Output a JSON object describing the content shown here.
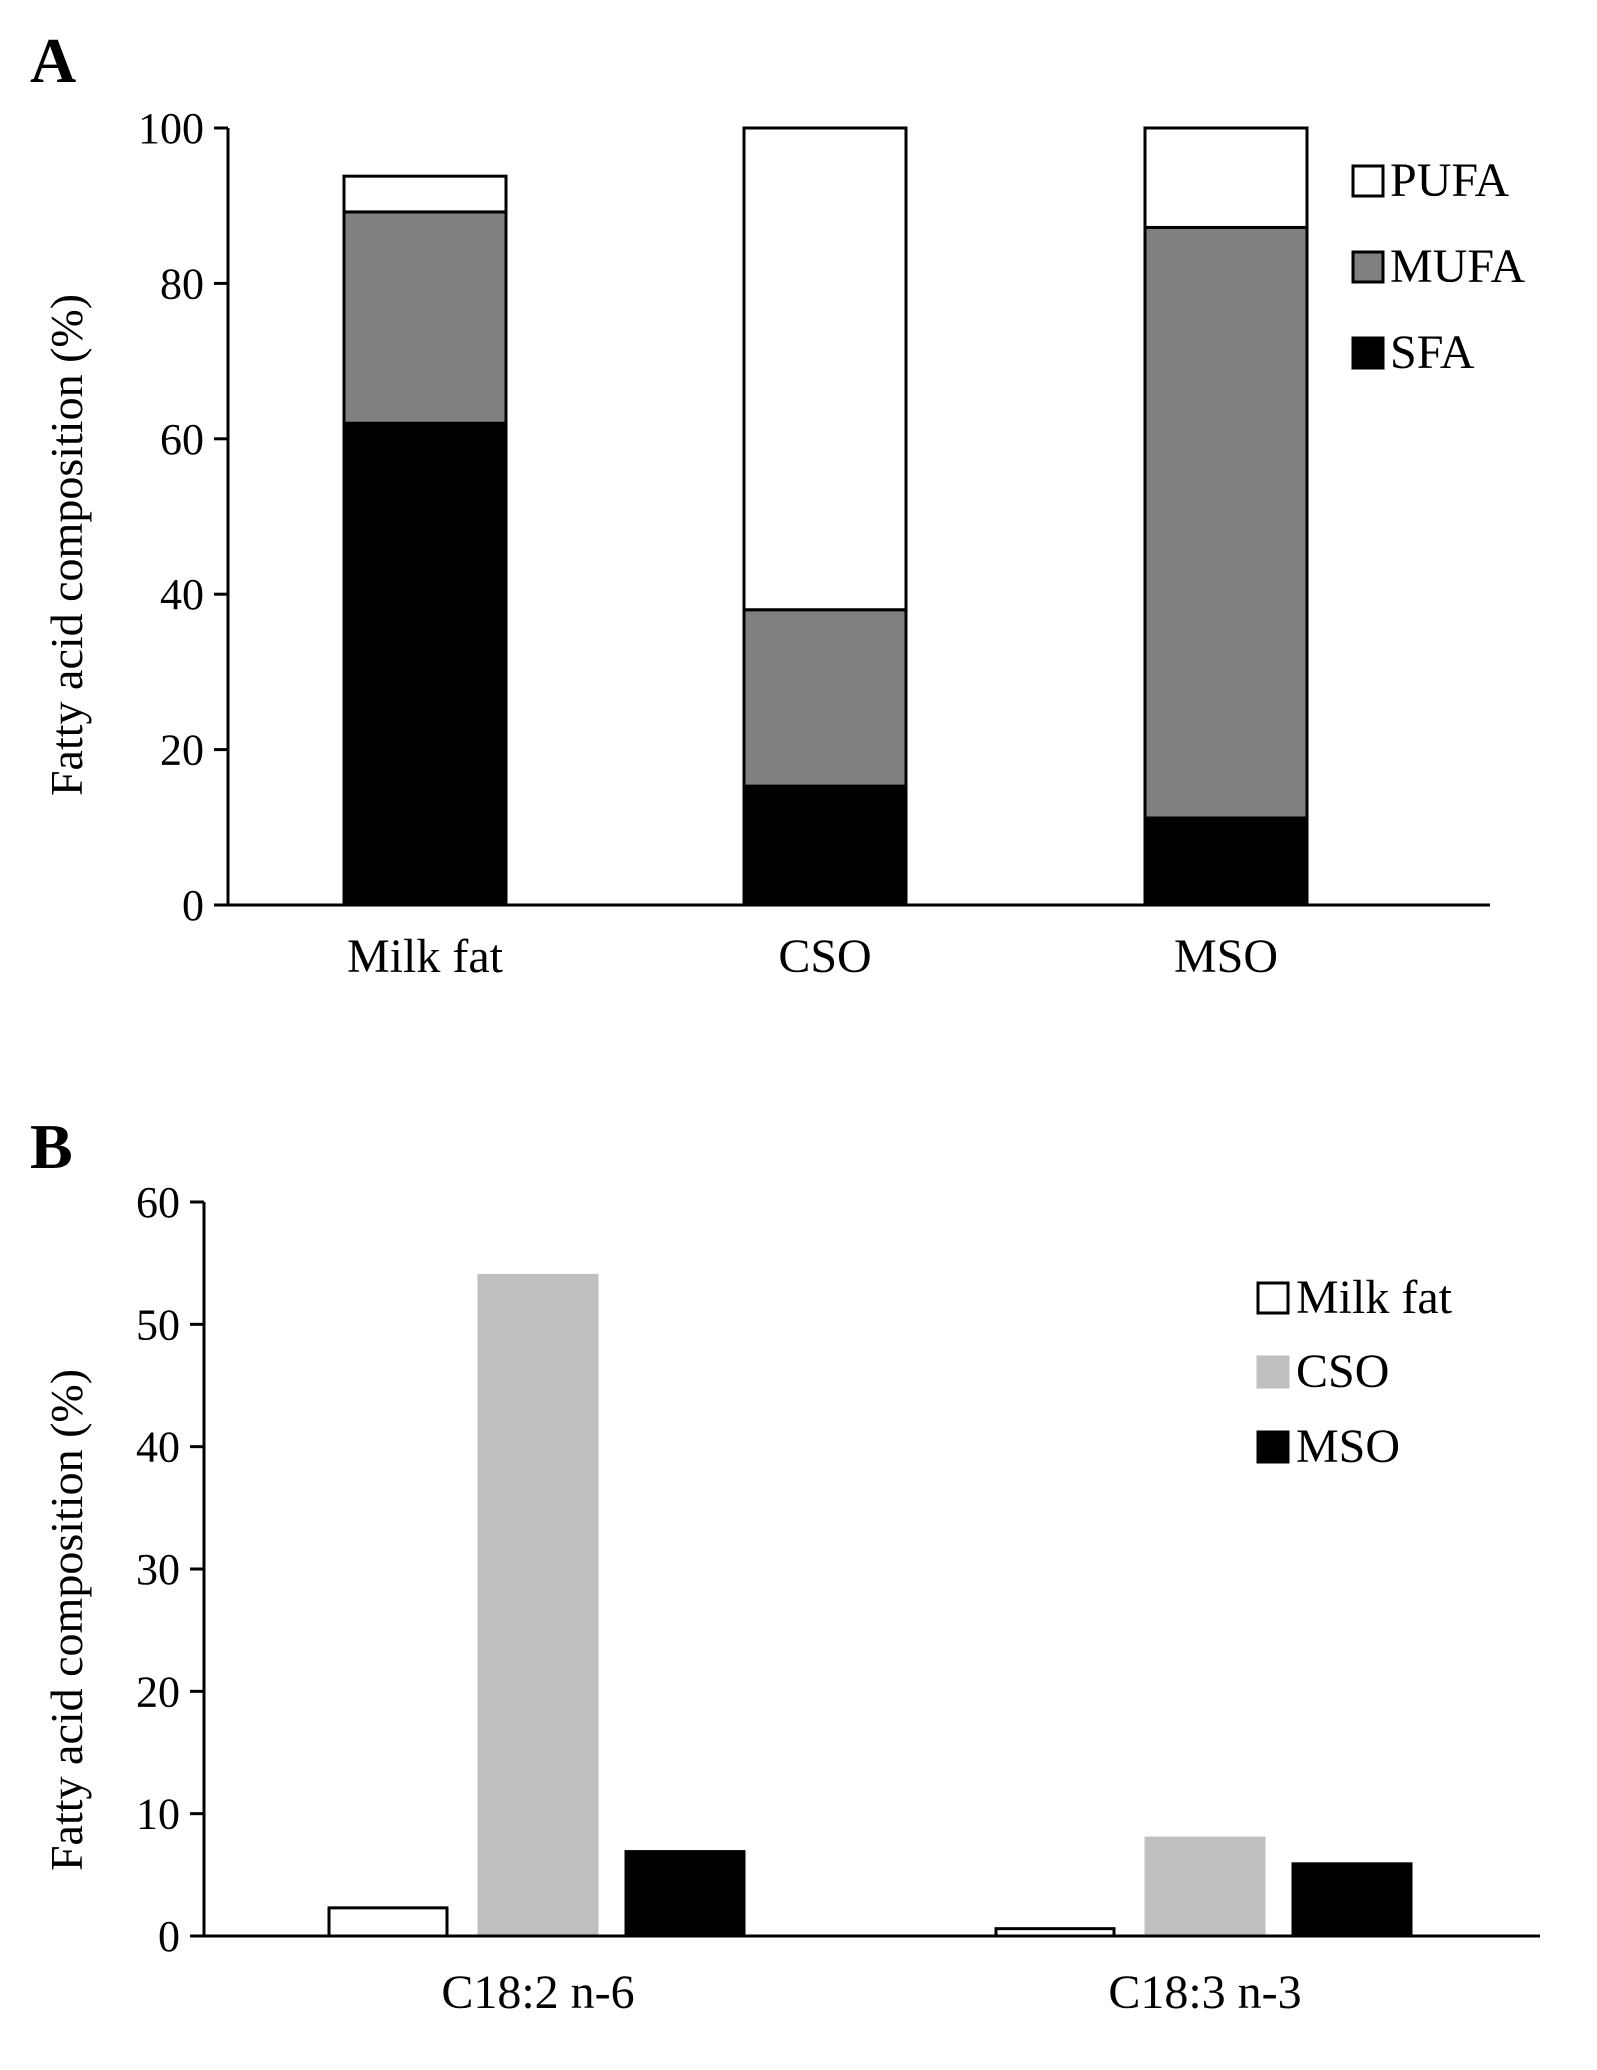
{
  "colors": {
    "pufa": "#ffffff",
    "mufa": "#808080",
    "sfa": "#000000",
    "milk_fat": "#ffffff",
    "cso": "#bfbfbf",
    "mso": "#000000",
    "stroke": "#000000"
  },
  "chart_data": [
    {
      "panel": "A",
      "type": "bar",
      "stacked": true,
      "categories": [
        "Milk fat",
        "CSO",
        "MSO"
      ],
      "series": [
        {
          "name": "SFA",
          "values": [
            62,
            15.3,
            11.2
          ]
        },
        {
          "name": "MUFA",
          "values": [
            27.2,
            22.7,
            76
          ]
        },
        {
          "name": "PUFA",
          "values": [
            4.6,
            62,
            12.8
          ]
        }
      ],
      "ylabel": "Fatty acid composition (%)",
      "ylim": [
        0,
        100
      ],
      "yticks": [
        0,
        20,
        40,
        60,
        80,
        100
      ],
      "legend": [
        "PUFA",
        "MUFA",
        "SFA"
      ],
      "legend_position": "top-right",
      "grid": false
    },
    {
      "panel": "B",
      "type": "bar",
      "stacked": false,
      "categories": [
        "C18:2 n-6",
        "C18:3 n-3"
      ],
      "series": [
        {
          "name": "Milk fat",
          "values": [
            2.3,
            0.6
          ]
        },
        {
          "name": "CSO",
          "values": [
            54,
            8
          ]
        },
        {
          "name": "MSO",
          "values": [
            6.9,
            5.9
          ]
        }
      ],
      "ylabel": "Fatty acid composition (%)",
      "ylim": [
        0,
        60
      ],
      "yticks": [
        0,
        10,
        20,
        30,
        40,
        50,
        60
      ],
      "legend": [
        "Milk fat",
        "CSO",
        "MSO"
      ],
      "legend_position": "top-right",
      "grid": false
    }
  ]
}
